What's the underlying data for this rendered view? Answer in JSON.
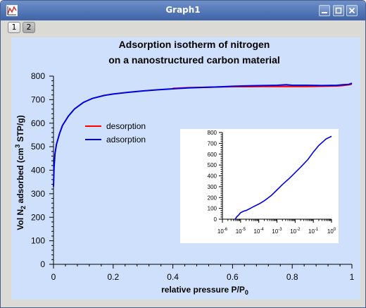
{
  "window": {
    "title": "Graph1",
    "tabs": [
      {
        "label": "1"
      },
      {
        "label": "2"
      }
    ],
    "icons": {
      "app": "graph-window-icon",
      "minimize": "minimize-icon",
      "maximize": "maximize-icon",
      "close": "close-icon"
    }
  },
  "chart_data": [
    {
      "type": "line",
      "title_line1": "Adsorption isotherm of nitrogen",
      "title_line2": "on a nanostructured carbon material",
      "xlabel": "relative pressure P/P",
      "xlabel_sub": "0",
      "ylabel_pre": "Vol N",
      "ylabel_sub": "2",
      "ylabel_mid": " adsorbed (cm",
      "ylabel_sup": "3",
      "ylabel_post": " STP/g)",
      "xlim": [
        0,
        1
      ],
      "ylim": [
        0,
        800
      ],
      "xticks": [
        "0",
        "0.2",
        "0.4",
        "0.6",
        "0.8",
        "1"
      ],
      "yticks": [
        "0",
        "100",
        "200",
        "300",
        "400",
        "500",
        "600",
        "700",
        "800"
      ],
      "legend_position": "upper-left",
      "grid": false,
      "series": [
        {
          "name": "desorption",
          "color": "#ff0000",
          "x": [
            0.4,
            0.45,
            0.5,
            0.55,
            0.6,
            0.65,
            0.7,
            0.75,
            0.8,
            0.85,
            0.9,
            0.95,
            0.97,
            0.99,
            1.0
          ],
          "y": [
            748,
            751,
            752,
            754,
            755,
            755,
            756,
            756,
            756,
            756,
            757,
            758,
            760,
            763,
            766
          ]
        },
        {
          "name": "adsorption",
          "color": "#0000dd",
          "x": [
            0.0,
            0.002,
            0.005,
            0.01,
            0.02,
            0.03,
            0.05,
            0.07,
            0.1,
            0.13,
            0.17,
            0.2,
            0.25,
            0.3,
            0.35,
            0.4,
            0.45,
            0.5,
            0.55,
            0.6,
            0.65,
            0.7,
            0.75,
            0.78,
            0.8,
            0.85,
            0.9,
            0.95,
            0.97,
            0.99,
            1.0
          ],
          "y": [
            330,
            410,
            470,
            510,
            555,
            590,
            630,
            660,
            688,
            705,
            718,
            724,
            731,
            737,
            742,
            746,
            750,
            752,
            754,
            757,
            759,
            760,
            761,
            763,
            761,
            761,
            760,
            761,
            763,
            765,
            770
          ]
        }
      ]
    },
    {
      "type": "line",
      "xscale": "log",
      "xlim": [
        1e-06,
        1
      ],
      "ylim": [
        0,
        800
      ],
      "xticks": [
        "10",
        "10",
        "10",
        "10",
        "10",
        "10",
        "10"
      ],
      "xtick_exponents": [
        "-6",
        "-5",
        "-4",
        "-3",
        "-2",
        "-1",
        "0"
      ],
      "yticks": [
        "0",
        "100",
        "200",
        "300",
        "400",
        "500",
        "600",
        "700",
        "800"
      ],
      "series": [
        {
          "color": "#0000dd",
          "x": [
            5e-06,
            6e-06,
            8e-06,
            1e-05,
            1.5e-05,
            2e-05,
            3e-05,
            5e-05,
            0.0001,
            0.0002,
            0.0005,
            0.001,
            0.002,
            0.005,
            0.01,
            0.02,
            0.05,
            0.1,
            0.2,
            0.5,
            1.0
          ],
          "y": [
            0,
            20,
            40,
            60,
            75,
            80,
            95,
            115,
            140,
            170,
            220,
            270,
            320,
            380,
            430,
            480,
            550,
            620,
            680,
            740,
            765
          ]
        }
      ]
    }
  ]
}
